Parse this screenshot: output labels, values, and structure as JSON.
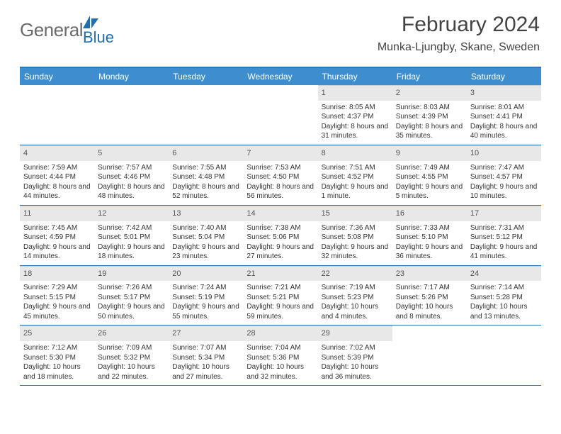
{
  "brand": {
    "general": "General",
    "blue": "Blue"
  },
  "title": "February 2024",
  "location": "Munka-Ljungby, Skane, Sweden",
  "colors": {
    "header_bg": "#3e8ecf",
    "border": "#2c78b8",
    "daynum_bg": "#e8e8e8",
    "text": "#333333",
    "logo_gray": "#6b6b6b",
    "logo_blue": "#1f6fb2"
  },
  "dow": [
    "Sunday",
    "Monday",
    "Tuesday",
    "Wednesday",
    "Thursday",
    "Friday",
    "Saturday"
  ],
  "weeks": [
    [
      {
        "n": "",
        "sr": "",
        "ss": "",
        "dl": ""
      },
      {
        "n": "",
        "sr": "",
        "ss": "",
        "dl": ""
      },
      {
        "n": "",
        "sr": "",
        "ss": "",
        "dl": ""
      },
      {
        "n": "",
        "sr": "",
        "ss": "",
        "dl": ""
      },
      {
        "n": "1",
        "sr": "Sunrise: 8:05 AM",
        "ss": "Sunset: 4:37 PM",
        "dl": "Daylight: 8 hours and 31 minutes."
      },
      {
        "n": "2",
        "sr": "Sunrise: 8:03 AM",
        "ss": "Sunset: 4:39 PM",
        "dl": "Daylight: 8 hours and 35 minutes."
      },
      {
        "n": "3",
        "sr": "Sunrise: 8:01 AM",
        "ss": "Sunset: 4:41 PM",
        "dl": "Daylight: 8 hours and 40 minutes."
      }
    ],
    [
      {
        "n": "4",
        "sr": "Sunrise: 7:59 AM",
        "ss": "Sunset: 4:44 PM",
        "dl": "Daylight: 8 hours and 44 minutes."
      },
      {
        "n": "5",
        "sr": "Sunrise: 7:57 AM",
        "ss": "Sunset: 4:46 PM",
        "dl": "Daylight: 8 hours and 48 minutes."
      },
      {
        "n": "6",
        "sr": "Sunrise: 7:55 AM",
        "ss": "Sunset: 4:48 PM",
        "dl": "Daylight: 8 hours and 52 minutes."
      },
      {
        "n": "7",
        "sr": "Sunrise: 7:53 AM",
        "ss": "Sunset: 4:50 PM",
        "dl": "Daylight: 8 hours and 56 minutes."
      },
      {
        "n": "8",
        "sr": "Sunrise: 7:51 AM",
        "ss": "Sunset: 4:52 PM",
        "dl": "Daylight: 9 hours and 1 minute."
      },
      {
        "n": "9",
        "sr": "Sunrise: 7:49 AM",
        "ss": "Sunset: 4:55 PM",
        "dl": "Daylight: 9 hours and 5 minutes."
      },
      {
        "n": "10",
        "sr": "Sunrise: 7:47 AM",
        "ss": "Sunset: 4:57 PM",
        "dl": "Daylight: 9 hours and 10 minutes."
      }
    ],
    [
      {
        "n": "11",
        "sr": "Sunrise: 7:45 AM",
        "ss": "Sunset: 4:59 PM",
        "dl": "Daylight: 9 hours and 14 minutes."
      },
      {
        "n": "12",
        "sr": "Sunrise: 7:42 AM",
        "ss": "Sunset: 5:01 PM",
        "dl": "Daylight: 9 hours and 18 minutes."
      },
      {
        "n": "13",
        "sr": "Sunrise: 7:40 AM",
        "ss": "Sunset: 5:04 PM",
        "dl": "Daylight: 9 hours and 23 minutes."
      },
      {
        "n": "14",
        "sr": "Sunrise: 7:38 AM",
        "ss": "Sunset: 5:06 PM",
        "dl": "Daylight: 9 hours and 27 minutes."
      },
      {
        "n": "15",
        "sr": "Sunrise: 7:36 AM",
        "ss": "Sunset: 5:08 PM",
        "dl": "Daylight: 9 hours and 32 minutes."
      },
      {
        "n": "16",
        "sr": "Sunrise: 7:33 AM",
        "ss": "Sunset: 5:10 PM",
        "dl": "Daylight: 9 hours and 36 minutes."
      },
      {
        "n": "17",
        "sr": "Sunrise: 7:31 AM",
        "ss": "Sunset: 5:12 PM",
        "dl": "Daylight: 9 hours and 41 minutes."
      }
    ],
    [
      {
        "n": "18",
        "sr": "Sunrise: 7:29 AM",
        "ss": "Sunset: 5:15 PM",
        "dl": "Daylight: 9 hours and 45 minutes."
      },
      {
        "n": "19",
        "sr": "Sunrise: 7:26 AM",
        "ss": "Sunset: 5:17 PM",
        "dl": "Daylight: 9 hours and 50 minutes."
      },
      {
        "n": "20",
        "sr": "Sunrise: 7:24 AM",
        "ss": "Sunset: 5:19 PM",
        "dl": "Daylight: 9 hours and 55 minutes."
      },
      {
        "n": "21",
        "sr": "Sunrise: 7:21 AM",
        "ss": "Sunset: 5:21 PM",
        "dl": "Daylight: 9 hours and 59 minutes."
      },
      {
        "n": "22",
        "sr": "Sunrise: 7:19 AM",
        "ss": "Sunset: 5:23 PM",
        "dl": "Daylight: 10 hours and 4 minutes."
      },
      {
        "n": "23",
        "sr": "Sunrise: 7:17 AM",
        "ss": "Sunset: 5:26 PM",
        "dl": "Daylight: 10 hours and 8 minutes."
      },
      {
        "n": "24",
        "sr": "Sunrise: 7:14 AM",
        "ss": "Sunset: 5:28 PM",
        "dl": "Daylight: 10 hours and 13 minutes."
      }
    ],
    [
      {
        "n": "25",
        "sr": "Sunrise: 7:12 AM",
        "ss": "Sunset: 5:30 PM",
        "dl": "Daylight: 10 hours and 18 minutes."
      },
      {
        "n": "26",
        "sr": "Sunrise: 7:09 AM",
        "ss": "Sunset: 5:32 PM",
        "dl": "Daylight: 10 hours and 22 minutes."
      },
      {
        "n": "27",
        "sr": "Sunrise: 7:07 AM",
        "ss": "Sunset: 5:34 PM",
        "dl": "Daylight: 10 hours and 27 minutes."
      },
      {
        "n": "28",
        "sr": "Sunrise: 7:04 AM",
        "ss": "Sunset: 5:36 PM",
        "dl": "Daylight: 10 hours and 32 minutes."
      },
      {
        "n": "29",
        "sr": "Sunrise: 7:02 AM",
        "ss": "Sunset: 5:39 PM",
        "dl": "Daylight: 10 hours and 36 minutes."
      },
      {
        "n": "",
        "sr": "",
        "ss": "",
        "dl": ""
      },
      {
        "n": "",
        "sr": "",
        "ss": "",
        "dl": ""
      }
    ]
  ]
}
